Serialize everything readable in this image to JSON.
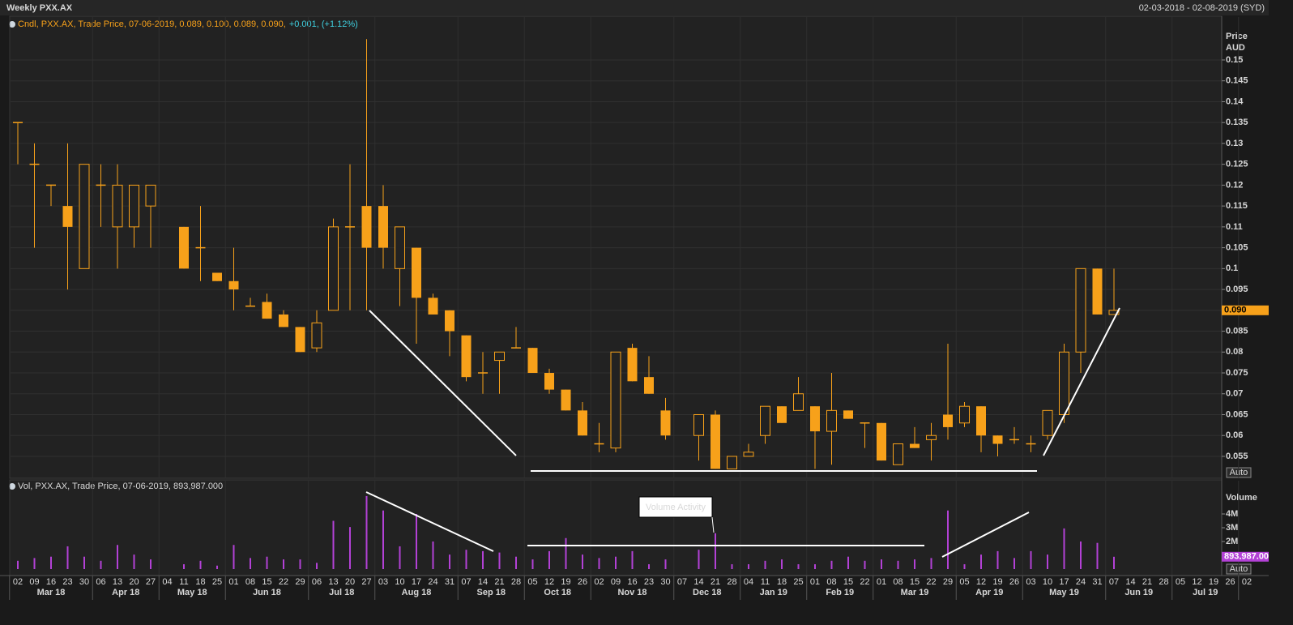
{
  "header": {
    "title": "Weekly PXX.AX",
    "range": "02-03-2018 - 02-08-2019 (SYD)"
  },
  "x_axis": [
    {
      "month": "Mar 18",
      "days": [
        "02",
        "09",
        "16",
        "23",
        "30"
      ]
    },
    {
      "month": "Apr 18",
      "days": [
        "06",
        "13",
        "20",
        "27"
      ]
    },
    {
      "month": "May 18",
      "days": [
        "04",
        "11",
        "18",
        "25"
      ]
    },
    {
      "month": "Jun 18",
      "days": [
        "01",
        "08",
        "15",
        "22",
        "29"
      ]
    },
    {
      "month": "Jul 18",
      "days": [
        "06",
        "13",
        "20",
        "27"
      ]
    },
    {
      "month": "Aug 18",
      "days": [
        "03",
        "10",
        "17",
        "24",
        "31"
      ]
    },
    {
      "month": "Sep 18",
      "days": [
        "07",
        "14",
        "21",
        "28"
      ]
    },
    {
      "month": "Oct 18",
      "days": [
        "05",
        "12",
        "19",
        "26"
      ]
    },
    {
      "month": "Nov 18",
      "days": [
        "02",
        "09",
        "16",
        "23",
        "30"
      ]
    },
    {
      "month": "Dec 18",
      "days": [
        "07",
        "14",
        "21",
        "28"
      ]
    },
    {
      "month": "Jan 19",
      "days": [
        "04",
        "11",
        "18",
        "25"
      ]
    },
    {
      "month": "Feb 19",
      "days": [
        "01",
        "08",
        "15",
        "22"
      ]
    },
    {
      "month": "Mar 19",
      "days": [
        "01",
        "08",
        "15",
        "22",
        "29"
      ]
    },
    {
      "month": "Apr 19",
      "days": [
        "05",
        "12",
        "19",
        "26"
      ]
    },
    {
      "month": "May 19",
      "days": [
        "03",
        "10",
        "17",
        "24",
        "31"
      ]
    },
    {
      "month": "Jun 19",
      "days": [
        "07",
        "14",
        "21",
        "28"
      ]
    },
    {
      "month": "Jul 19",
      "days": [
        "05",
        "12",
        "19",
        "26"
      ]
    },
    {
      "month": null,
      "days": [
        "02"
      ]
    }
  ],
  "chart_data": [
    {
      "type": "candlestick",
      "legend": "Cndl, PXX.AX, Trade Price, 07-06-2019, 0.089, 0.100, 0.089, 0.090,",
      "legend_change": "+0.001, (+1.12%)",
      "axis_title": [
        "Price",
        "AUD"
      ],
      "scale_button": "Auto",
      "color": "#f7a11a",
      "grid": true,
      "open": [
        0.135,
        0.125,
        0.12,
        0.115,
        0.1,
        0.12,
        0.11,
        0.11,
        0.115,
        null,
        0.11,
        0.105,
        0.099,
        0.097,
        0.091,
        0.092,
        0.089,
        0.086,
        0.081,
        0.09,
        0.11,
        0.115,
        0.115,
        0.1,
        0.105,
        0.093,
        0.09,
        0.084,
        0.075,
        0.078,
        0.081,
        0.081,
        0.075,
        0.071,
        0.066,
        0.058,
        0.057,
        0.081,
        0.074,
        0.066,
        null,
        0.06,
        0.065,
        0.052,
        0.055,
        0.06,
        0.067,
        0.066,
        0.067,
        0.061,
        0.066,
        0.063,
        0.063,
        0.053,
        0.058,
        0.059,
        0.065,
        0.063,
        0.067,
        0.06,
        0.059,
        0.058,
        0.06,
        0.065,
        0.08,
        0.1,
        0.089,
        null,
        null,
        null,
        null,
        null,
        null
      ],
      "high": [
        0.135,
        0.13,
        0.12,
        0.13,
        0.125,
        0.125,
        0.125,
        0.12,
        0.12,
        null,
        0.11,
        0.115,
        0.099,
        0.105,
        0.093,
        0.094,
        0.09,
        0.086,
        0.09,
        0.112,
        0.125,
        0.155,
        0.12,
        0.11,
        0.105,
        0.094,
        0.09,
        0.084,
        0.08,
        0.08,
        0.086,
        0.081,
        0.076,
        0.071,
        0.068,
        0.063,
        0.08,
        0.082,
        0.079,
        0.069,
        null,
        0.065,
        0.066,
        0.055,
        0.058,
        0.067,
        0.067,
        0.074,
        0.067,
        0.075,
        0.066,
        0.063,
        0.063,
        0.058,
        0.062,
        0.063,
        0.082,
        0.068,
        0.067,
        0.06,
        0.062,
        0.06,
        0.066,
        0.082,
        0.1,
        0.1,
        0.1,
        null,
        null,
        null,
        null,
        null,
        null
      ],
      "low": [
        0.125,
        0.105,
        0.115,
        0.095,
        0.1,
        0.11,
        0.1,
        0.105,
        0.105,
        null,
        0.1,
        0.097,
        0.097,
        0.09,
        0.091,
        0.088,
        0.086,
        0.08,
        0.08,
        0.09,
        0.09,
        0.09,
        0.1,
        0.091,
        0.082,
        0.089,
        0.079,
        0.073,
        0.07,
        0.07,
        0.081,
        0.075,
        0.07,
        0.066,
        0.06,
        0.056,
        0.056,
        0.073,
        0.07,
        0.059,
        null,
        0.054,
        0.052,
        0.052,
        0.055,
        0.058,
        0.063,
        0.066,
        0.052,
        0.053,
        0.064,
        0.057,
        0.054,
        0.053,
        0.057,
        0.054,
        0.059,
        0.062,
        0.056,
        0.055,
        0.058,
        0.056,
        0.059,
        0.063,
        0.075,
        0.089,
        0.089,
        null,
        null,
        null,
        null,
        null,
        null
      ],
      "close": [
        0.135,
        0.125,
        0.12,
        0.11,
        0.125,
        0.12,
        0.12,
        0.12,
        0.12,
        null,
        0.1,
        0.105,
        0.097,
        0.095,
        0.091,
        0.088,
        0.086,
        0.08,
        0.087,
        0.11,
        0.11,
        0.105,
        0.105,
        0.11,
        0.093,
        0.089,
        0.085,
        0.074,
        0.075,
        0.08,
        0.081,
        0.075,
        0.071,
        0.066,
        0.06,
        0.058,
        0.08,
        0.073,
        0.07,
        0.06,
        null,
        0.065,
        0.052,
        0.055,
        0.056,
        0.067,
        0.063,
        0.07,
        0.061,
        0.066,
        0.064,
        0.063,
        0.054,
        0.058,
        0.057,
        0.06,
        0.062,
        0.067,
        0.06,
        0.058,
        0.059,
        0.058,
        0.066,
        0.08,
        0.1,
        0.089,
        0.09,
        null,
        null,
        null,
        null,
        null,
        null
      ],
      "ylim": [
        0.05,
        0.16
      ],
      "yticks": [
        0.055,
        0.06,
        0.065,
        0.07,
        0.075,
        0.08,
        0.085,
        0.09,
        0.095,
        0.1,
        0.105,
        0.11,
        0.115,
        0.12,
        0.125,
        0.13,
        0.135,
        0.14,
        0.145,
        0.15
      ],
      "last_value": {
        "value": 0.09,
        "label": "0.090"
      }
    },
    {
      "type": "bar",
      "legend": "Vol, PXX.AX, Trade Price, 07-06-2019, 893,987.000",
      "axis_title": "Volume",
      "scale_button": "Auto",
      "color": "#b341d6",
      "annotation": "Volume Activity",
      "values": [
        600000,
        800000,
        900000,
        1650000,
        900000,
        600000,
        1750000,
        1050000,
        700000,
        null,
        350000,
        600000,
        250000,
        1750000,
        800000,
        900000,
        700000,
        700000,
        450000,
        3500000,
        3050000,
        5300000,
        4250000,
        1650000,
        4000000,
        2000000,
        1050000,
        1400000,
        1300000,
        1200000,
        900000,
        700000,
        1300000,
        2250000,
        1050000,
        800000,
        900000,
        1300000,
        350000,
        700000,
        null,
        1400000,
        2600000,
        350000,
        350000,
        600000,
        700000,
        350000,
        350000,
        600000,
        900000,
        600000,
        700000,
        600000,
        700000,
        800000,
        4250000,
        350000,
        1050000,
        1300000,
        800000,
        1300000,
        1050000,
        2950000,
        2000000,
        1900000,
        893987,
        null,
        null,
        null,
        null,
        null,
        null
      ],
      "ylim": [
        0,
        6000000
      ],
      "yticks": [
        {
          "value": 2000000,
          "label": "2M"
        },
        {
          "value": 3000000,
          "label": "3M"
        },
        {
          "value": 4000000,
          "label": "4M"
        }
      ],
      "last_value": {
        "value": 893987,
        "label": "893,987.000"
      }
    }
  ]
}
